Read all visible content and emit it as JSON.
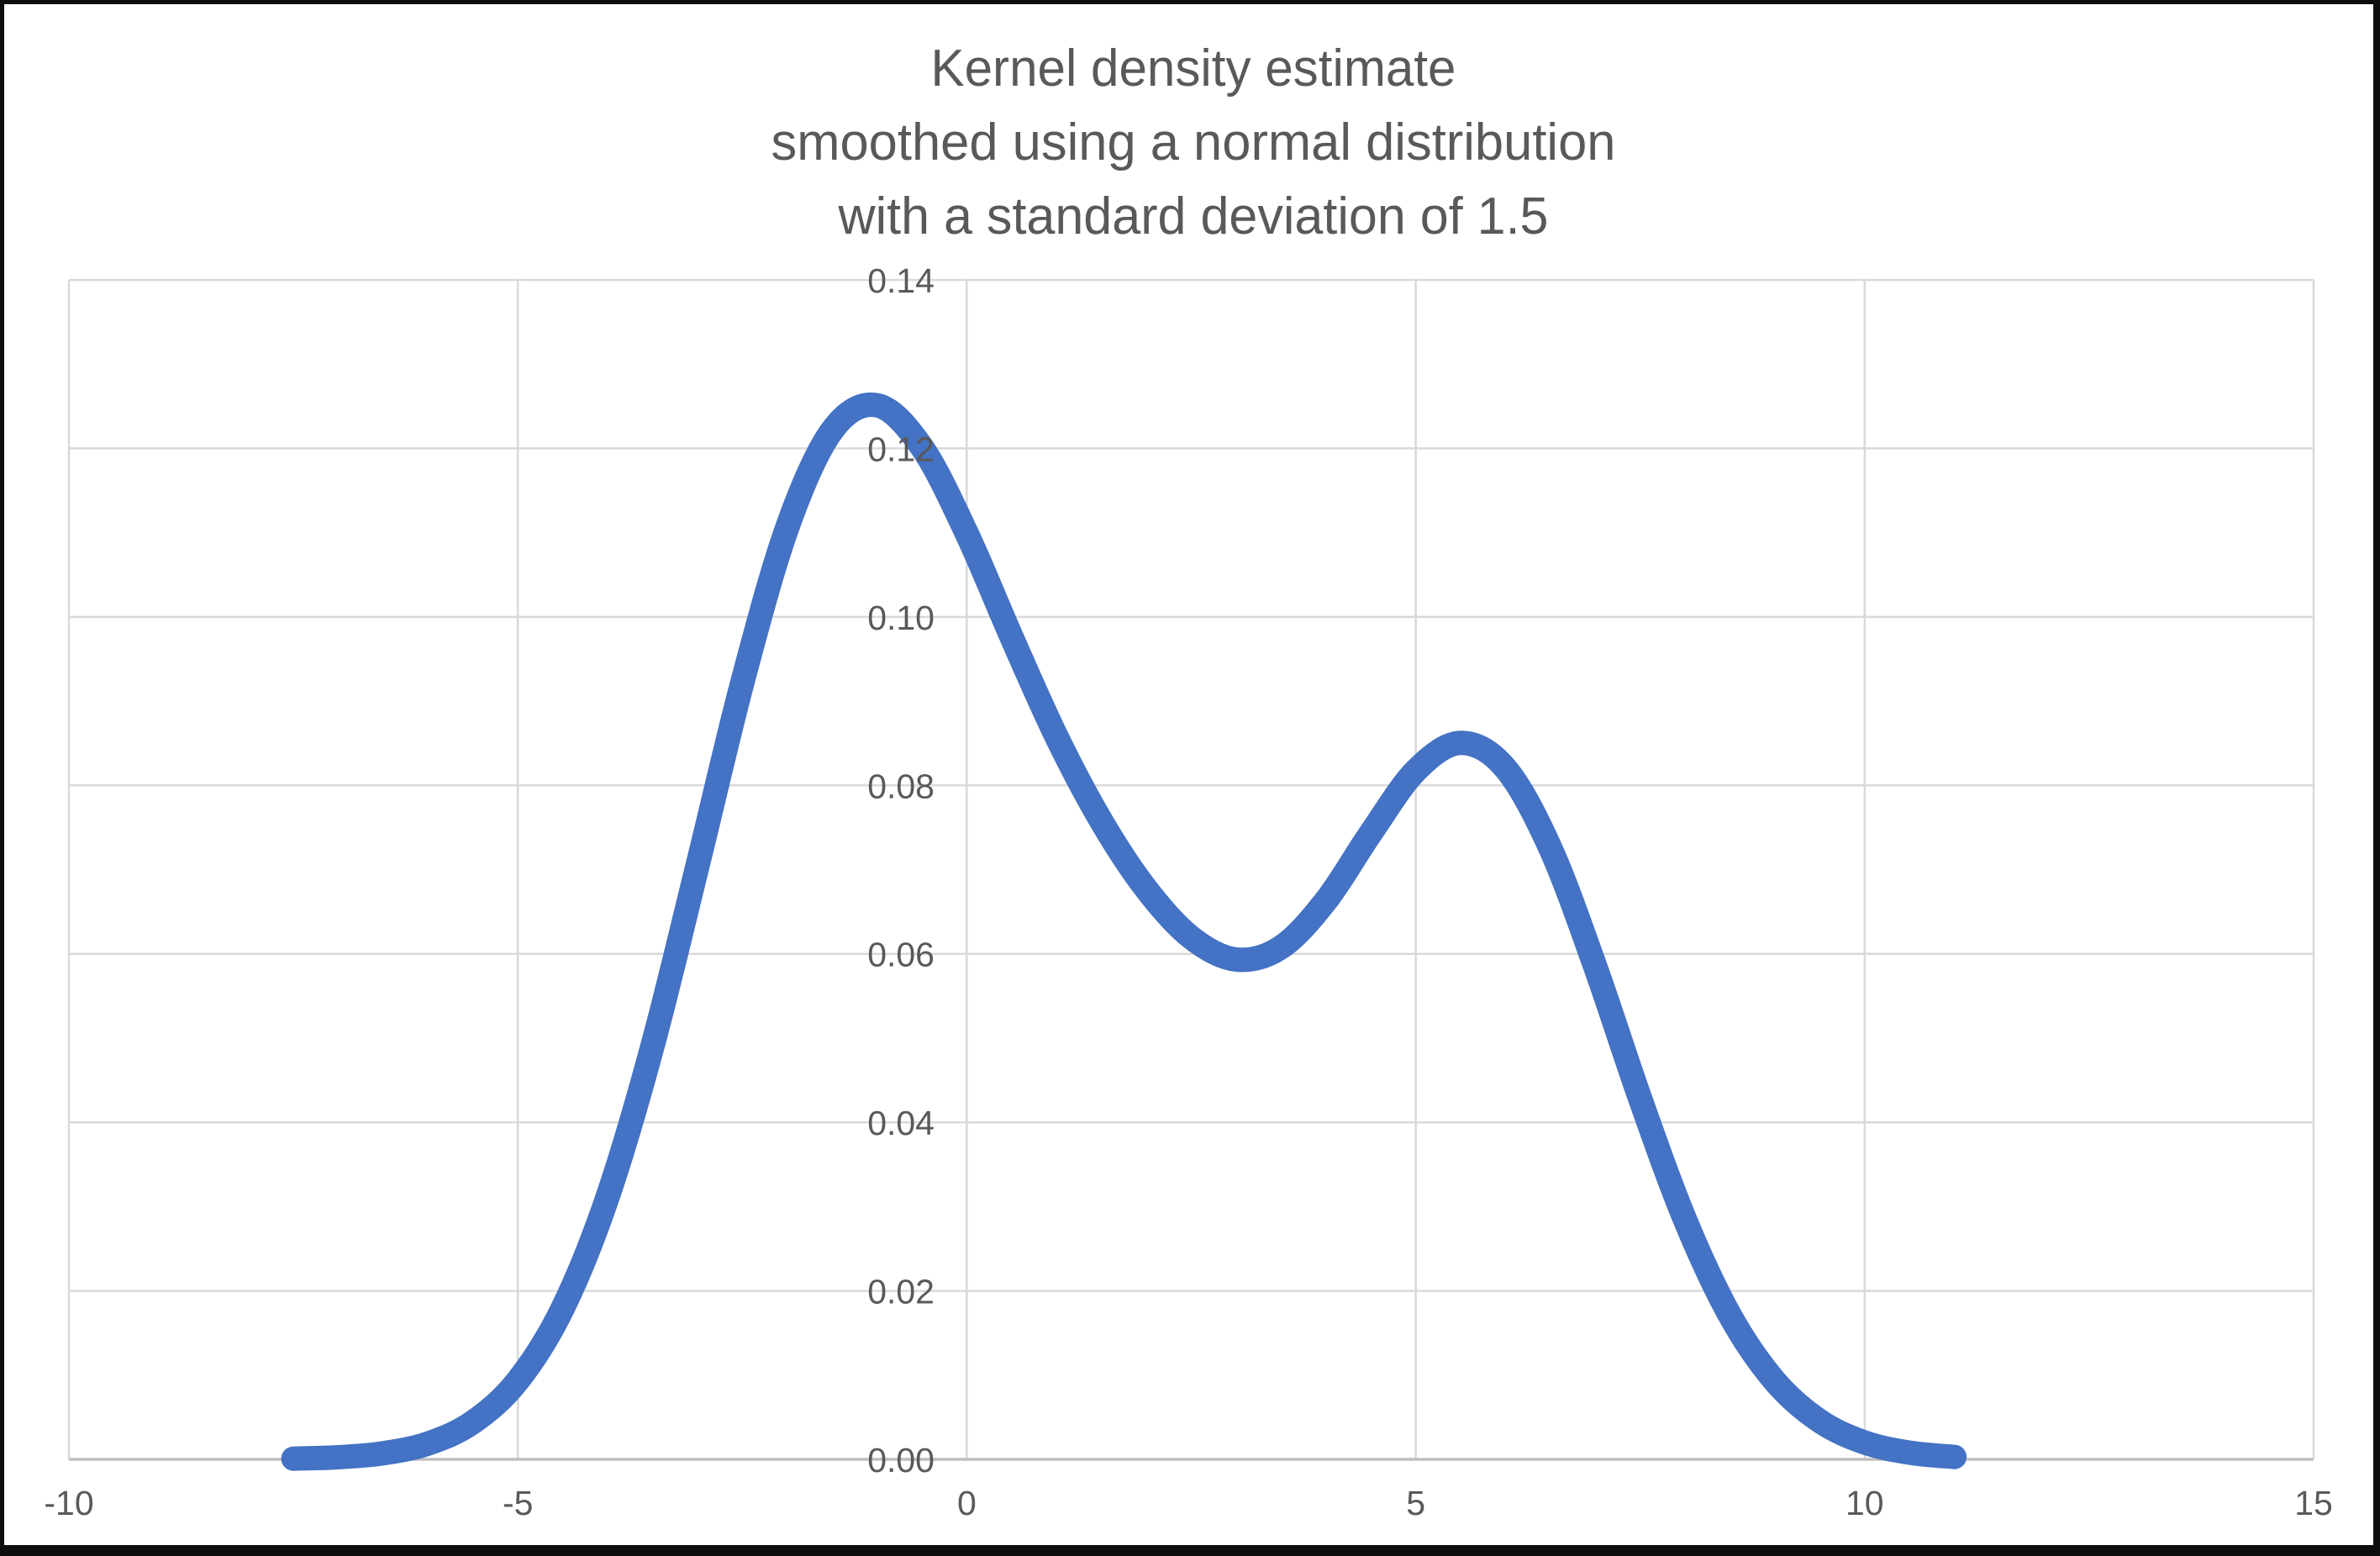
{
  "chart_data": {
    "type": "line",
    "title": "Kernel density estimate\nsmoothed using a normal distribution\nwith a standard deviation of 1.5",
    "title_lines": [
      "Kernel density estimate",
      "smoothed using a normal distribution",
      "with a standard deviation of 1.5"
    ],
    "xlabel": "",
    "ylabel": "",
    "xlim": [
      -10,
      15
    ],
    "ylim": [
      0,
      0.14
    ],
    "grid": true,
    "legend": "none",
    "x_ticks": [
      {
        "value": -10,
        "label": "-10"
      },
      {
        "value": -5,
        "label": "-5"
      },
      {
        "value": 0,
        "label": "0"
      },
      {
        "value": 5,
        "label": "5"
      },
      {
        "value": 10,
        "label": "10"
      },
      {
        "value": 15,
        "label": "15"
      }
    ],
    "y_ticks": [
      {
        "value": 0.0,
        "label": "0.00"
      },
      {
        "value": 0.02,
        "label": "0.02"
      },
      {
        "value": 0.04,
        "label": "0.04"
      },
      {
        "value": 0.06,
        "label": "0.06"
      },
      {
        "value": 0.08,
        "label": "0.08"
      },
      {
        "value": 0.1,
        "label": "0.10"
      },
      {
        "value": 0.12,
        "label": "0.12"
      },
      {
        "value": 0.14,
        "label": "0.14"
      }
    ],
    "series": [
      {
        "name": "Kernel density estimate",
        "color": "#4472C4",
        "points": [
          [
            -7.5,
            8e-05
          ],
          [
            -7.0,
            0.00025
          ],
          [
            -6.5,
            0.00072
          ],
          [
            -6.0,
            0.00188
          ],
          [
            -5.5,
            0.00441
          ],
          [
            -5.0,
            0.00935
          ],
          [
            -4.5,
            0.01794
          ],
          [
            -4.0,
            0.03115
          ],
          [
            -3.5,
            0.04909
          ],
          [
            -3.0,
            0.07043
          ],
          [
            -2.5,
            0.0922
          ],
          [
            -2.0,
            0.11059
          ],
          [
            -1.5,
            0.12213
          ],
          [
            -1.0,
            0.12512
          ],
          [
            -0.5,
            0.12014
          ],
          [
            0.0,
            0.10989
          ],
          [
            0.5,
            0.09758
          ],
          [
            1.0,
            0.08578
          ],
          [
            1.5,
            0.07572
          ],
          [
            2.0,
            0.06767
          ],
          [
            2.5,
            0.06193
          ],
          [
            3.0,
            0.05933
          ],
          [
            3.5,
            0.06078
          ],
          [
            4.0,
            0.06632
          ],
          [
            4.5,
            0.07435
          ],
          [
            5.0,
            0.08173
          ],
          [
            5.5,
            0.08504
          ],
          [
            6.0,
            0.08202
          ],
          [
            6.5,
            0.07252
          ],
          [
            7.0,
            0.05846
          ],
          [
            7.5,
            0.04281
          ],
          [
            8.0,
            0.02843
          ],
          [
            8.5,
            0.01708
          ],
          [
            9.0,
            0.00927
          ],
          [
            9.5,
            0.00454
          ],
          [
            10.0,
            0.002
          ],
          [
            10.5,
            0.00079
          ],
          [
            11.0,
            0.00028
          ]
        ]
      }
    ]
  },
  "colors": {
    "curve": "#4472C4",
    "gridline": "#D9D9D9",
    "axis_line": "#BFBFBF",
    "label_text": "#595959",
    "title_text": "#595959",
    "background": "#FFFFFF",
    "frame": "#0D0D0D"
  }
}
